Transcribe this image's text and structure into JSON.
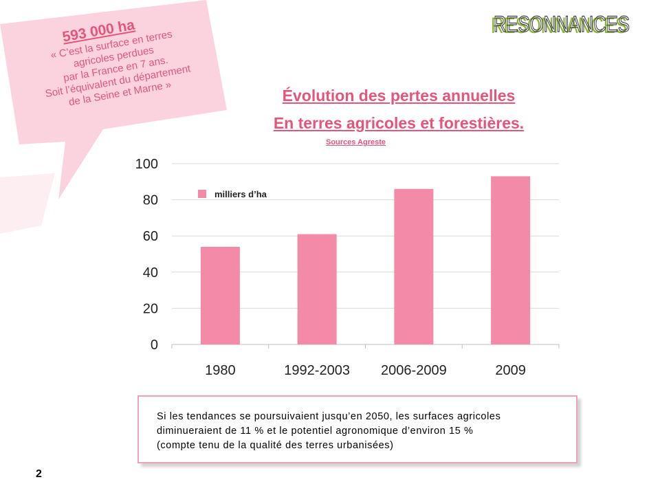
{
  "callout": {
    "headline": "593 000 ha",
    "lines": [
      "« C’est la surface en terres",
      "agricoles perdues",
      "par la France en 7 ans.",
      "Soit l’équivalent du département",
      "de la Seine et Marne »"
    ]
  },
  "logo": {
    "text": "RESONNANCES"
  },
  "title": {
    "line1": "Évolution des pertes annuelles",
    "line2": "En terres agricoles et forestières.",
    "source": "Sources Agreste"
  },
  "chart_data": {
    "type": "bar",
    "categories": [
      "1980",
      "1992-2003",
      "2006-2009",
      "2009"
    ],
    "series": [
      {
        "name": "milliers d’ha",
        "values": [
          54,
          61,
          86,
          93
        ]
      }
    ],
    "ylim": [
      0,
      100
    ],
    "yticks": [
      0,
      20,
      40,
      60,
      80,
      100
    ],
    "grid": true,
    "legend_position": "top-left",
    "bar_color": "#f28aa8"
  },
  "info": {
    "line1": "Si les tendances se poursuivaient jusqu’en 2050, les surfaces agricoles",
    "line2": "diminueraient de 11 % et le potentiel agronomique  d’environ 15 %",
    "line3": "(compte tenu de la qualité des terres urbanisées)"
  },
  "page_number": "2",
  "colors": {
    "accent": "#e3567a",
    "bubble": "#fbd3df",
    "bar": "#f28aa8",
    "logo_green": "#8db53a",
    "logo_dark": "#3a3a3a"
  }
}
